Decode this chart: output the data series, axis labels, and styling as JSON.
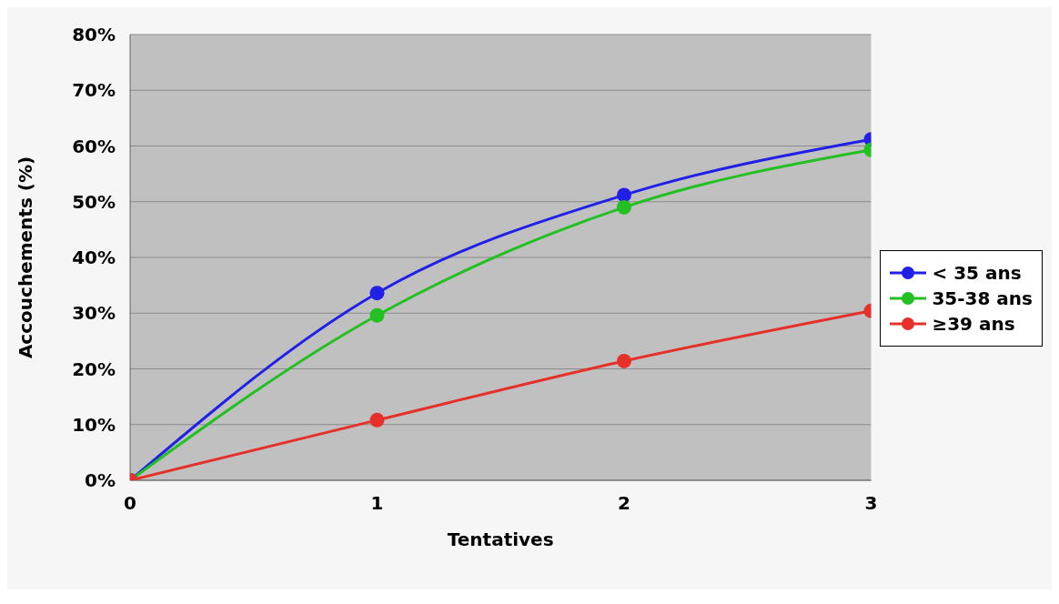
{
  "chart_data": {
    "type": "line",
    "xlabel": "Tentatives",
    "ylabel": "Accouchements (%)",
    "x": [
      0,
      1,
      2,
      3
    ],
    "series": [
      {
        "name": "< 35 ans",
        "color": "#2020e6",
        "values": [
          0,
          33.6,
          51.2,
          61.2
        ]
      },
      {
        "name": "35-38 ans",
        "color": "#22c022",
        "values": [
          0,
          29.6,
          49,
          59.3
        ]
      },
      {
        "name": "≥39 ans",
        "color": "#e6302a",
        "values": [
          0,
          10.8,
          21.4,
          30.4
        ]
      }
    ],
    "xlim": [
      0,
      3
    ],
    "xticks": [
      0,
      1,
      2,
      3
    ],
    "ylim": [
      0,
      80
    ],
    "yticks": [
      {
        "value": 0,
        "label": "0%"
      },
      {
        "value": 10,
        "label": "10%"
      },
      {
        "value": 20,
        "label": "20%"
      },
      {
        "value": 30,
        "label": "30%"
      },
      {
        "value": 40,
        "label": "40%"
      },
      {
        "value": 50,
        "label": "50%"
      },
      {
        "value": 60,
        "label": "60%"
      },
      {
        "value": 70,
        "label": "70%"
      },
      {
        "value": 80,
        "label": "80%"
      }
    ],
    "grid": "y",
    "legend": "right",
    "marker": "circle",
    "line_style": "solid"
  }
}
